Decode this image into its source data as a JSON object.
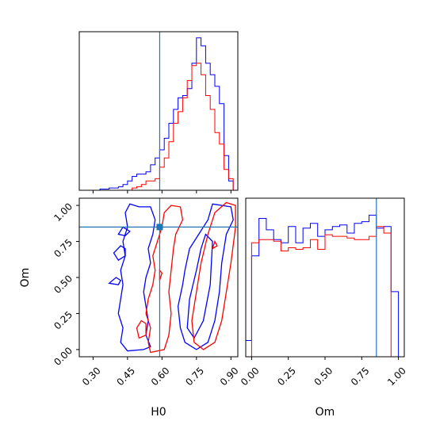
{
  "colors": {
    "series_a": "#0000ff",
    "series_b": "#ff0000",
    "truth": "#1f77b4",
    "frame": "#000000"
  },
  "chart_data": {
    "type": "corner",
    "grid": false,
    "legend": "none",
    "parameters": [
      "H0",
      "Om"
    ],
    "truth": {
      "H0": 0.59,
      "Om": 0.85
    },
    "panels": [
      {
        "id": "hist_H0",
        "type": "histogram-step",
        "xlim": [
          0.24,
          0.93
        ],
        "show_tick_labels": false,
        "bin_edges": [
          0.31,
          0.33,
          0.35,
          0.37,
          0.39,
          0.41,
          0.43,
          0.45,
          0.47,
          0.49,
          0.51,
          0.53,
          0.55,
          0.57,
          0.59,
          0.61,
          0.63,
          0.65,
          0.67,
          0.69,
          0.71,
          0.73,
          0.75,
          0.77,
          0.79,
          0.81,
          0.83,
          0.85,
          0.87,
          0.89,
          0.91,
          0.93
        ],
        "series": [
          {
            "color_key": "series_a",
            "values": [
              0,
              1,
              1,
              2,
              2,
              3,
              5,
              8,
              12,
              14,
              14,
              16,
              22,
              28,
              35,
              45,
              58,
              70,
              80,
              82,
              88,
              110,
              132,
              125,
              110,
              100,
              90,
              75,
              30,
              8,
              0
            ]
          },
          {
            "color_key": "series_b",
            "values": [
              0,
              0,
              0,
              0,
              0,
              0,
              0,
              0,
              2,
              3,
              5,
              8,
              8,
              10,
              20,
              28,
              42,
              58,
              68,
              80,
              95,
              108,
              110,
              100,
              82,
              70,
              50,
              40,
              18,
              10,
              0
            ]
          }
        ]
      },
      {
        "id": "contour_H0_Om",
        "type": "contour",
        "x_param": "H0",
        "y_param": "Om",
        "xlim": [
          0.24,
          0.93
        ],
        "ylim": [
          -0.05,
          1.05
        ],
        "xticks": [
          "0.30",
          "0.45",
          "0.60",
          "0.75",
          "0.90"
        ],
        "yticks": [
          "0.00",
          "0.25",
          "0.50",
          "0.75",
          "1.00"
        ],
        "xlabel": "H0",
        "ylabel": "Om",
        "contours": [
          {
            "color_key": "series_a",
            "points": [
              [
                0.46,
                1.01
              ],
              [
                0.5,
                0.99
              ],
              [
                0.55,
                0.99
              ],
              [
                0.57,
                0.9
              ],
              [
                0.56,
                0.8
              ],
              [
                0.54,
                0.7
              ],
              [
                0.55,
                0.6
              ],
              [
                0.53,
                0.5
              ],
              [
                0.52,
                0.4
              ],
              [
                0.53,
                0.3
              ],
              [
                0.54,
                0.2
              ],
              [
                0.53,
                0.1
              ],
              [
                0.55,
                0.02
              ],
              [
                0.52,
                0.0
              ],
              [
                0.45,
                -0.01
              ],
              [
                0.42,
                0.05
              ],
              [
                0.43,
                0.15
              ],
              [
                0.41,
                0.25
              ],
              [
                0.42,
                0.35
              ],
              [
                0.43,
                0.45
              ],
              [
                0.42,
                0.55
              ],
              [
                0.44,
                0.65
              ],
              [
                0.43,
                0.75
              ],
              [
                0.45,
                0.85
              ],
              [
                0.44,
                0.95
              ]
            ]
          },
          {
            "color_key": "series_a",
            "points": [
              [
                0.42,
                0.72
              ],
              [
                0.44,
                0.7
              ],
              [
                0.44,
                0.65
              ],
              [
                0.41,
                0.62
              ],
              [
                0.39,
                0.67
              ]
            ]
          },
          {
            "color_key": "series_a",
            "points": [
              [
                0.43,
                0.85
              ],
              [
                0.46,
                0.82
              ],
              [
                0.44,
                0.79
              ],
              [
                0.41,
                0.8
              ]
            ]
          },
          {
            "color_key": "series_a",
            "points": [
              [
                0.4,
                0.5
              ],
              [
                0.42,
                0.48
              ],
              [
                0.41,
                0.45
              ],
              [
                0.37,
                0.46
              ]
            ]
          },
          {
            "color_key": "series_a",
            "points": [
              [
                0.82,
                1.01
              ],
              [
                0.9,
                0.99
              ],
              [
                0.91,
                0.9
              ],
              [
                0.88,
                0.8
              ],
              [
                0.86,
                0.6
              ],
              [
                0.85,
                0.4
              ],
              [
                0.83,
                0.2
              ],
              [
                0.8,
                0.05
              ],
              [
                0.75,
                0.0
              ],
              [
                0.7,
                0.05
              ],
              [
                0.68,
                0.15
              ],
              [
                0.67,
                0.3
              ],
              [
                0.69,
                0.45
              ],
              [
                0.7,
                0.55
              ],
              [
                0.72,
                0.7
              ],
              [
                0.76,
                0.8
              ],
              [
                0.8,
                0.9
              ]
            ]
          },
          {
            "color_key": "series_a",
            "points": [
              [
                0.79,
                0.8
              ],
              [
                0.82,
                0.75
              ],
              [
                0.81,
                0.45
              ],
              [
                0.78,
                0.2
              ],
              [
                0.74,
                0.08
              ],
              [
                0.71,
                0.15
              ],
              [
                0.72,
                0.35
              ],
              [
                0.75,
                0.55
              ],
              [
                0.77,
                0.7
              ]
            ]
          },
          {
            "color_key": "series_b",
            "points": [
              [
                0.64,
                1.0
              ],
              [
                0.68,
                0.99
              ],
              [
                0.69,
                0.9
              ],
              [
                0.66,
                0.8
              ],
              [
                0.65,
                0.7
              ],
              [
                0.64,
                0.55
              ],
              [
                0.63,
                0.4
              ],
              [
                0.64,
                0.25
              ],
              [
                0.63,
                0.1
              ],
              [
                0.61,
                0.0
              ],
              [
                0.55,
                -0.02
              ],
              [
                0.54,
                0.05
              ],
              [
                0.55,
                0.15
              ],
              [
                0.53,
                0.25
              ],
              [
                0.54,
                0.35
              ],
              [
                0.56,
                0.45
              ],
              [
                0.57,
                0.55
              ],
              [
                0.56,
                0.65
              ],
              [
                0.58,
                0.75
              ],
              [
                0.6,
                0.85
              ],
              [
                0.61,
                0.95
              ]
            ]
          },
          {
            "color_key": "series_b",
            "points": [
              [
                0.51,
                0.2
              ],
              [
                0.53,
                0.18
              ],
              [
                0.53,
                0.1
              ],
              [
                0.5,
                0.08
              ],
              [
                0.49,
                0.15
              ]
            ]
          },
          {
            "color_key": "series_b",
            "points": [
              [
                0.59,
                0.55
              ],
              [
                0.6,
                0.53
              ],
              [
                0.59,
                0.48
              ]
            ]
          },
          {
            "color_key": "series_b",
            "points": [
              [
                0.88,
                1.02
              ],
              [
                0.92,
                1.0
              ],
              [
                0.92,
                0.85
              ],
              [
                0.9,
                0.6
              ],
              [
                0.88,
                0.4
              ],
              [
                0.86,
                0.2
              ],
              [
                0.83,
                0.05
              ],
              [
                0.78,
                0.0
              ],
              [
                0.74,
                0.05
              ],
              [
                0.73,
                0.2
              ],
              [
                0.75,
                0.4
              ],
              [
                0.77,
                0.6
              ],
              [
                0.8,
                0.8
              ],
              [
                0.83,
                0.95
              ]
            ]
          },
          {
            "color_key": "series_b",
            "points": [
              [
                0.83,
                0.75
              ],
              [
                0.84,
                0.72
              ],
              [
                0.82,
                0.7
              ]
            ]
          }
        ]
      },
      {
        "id": "hist_Om",
        "type": "histogram-step",
        "xlim": [
          -0.04,
          1.04
        ],
        "xticks": [
          "0.00",
          "0.25",
          "0.50",
          "0.75",
          "1.00"
        ],
        "xlabel": "Om",
        "bin_edges": [
          -0.05,
          0.0,
          0.05,
          0.1,
          0.15,
          0.2,
          0.25,
          0.3,
          0.35,
          0.4,
          0.45,
          0.5,
          0.55,
          0.6,
          0.65,
          0.7,
          0.75,
          0.8,
          0.85,
          0.9,
          0.95,
          1.0,
          1.05
        ],
        "series": [
          {
            "color_key": "series_a",
            "values": [
              10,
              62,
              85,
              78,
              72,
              70,
              80,
              70,
              79,
              82,
              74,
              78,
              80,
              81,
              76,
              82,
              83,
              87,
              79,
              80,
              40,
              0
            ]
          },
          {
            "color_key": "series_b",
            "values": [
              0,
              70,
              72,
              72,
              71,
              65,
              67,
              66,
              67,
              72,
              66,
              75,
              74,
              74,
              73,
              72,
              72,
              74,
              80,
              76,
              0,
              0
            ]
          }
        ]
      }
    ]
  }
}
